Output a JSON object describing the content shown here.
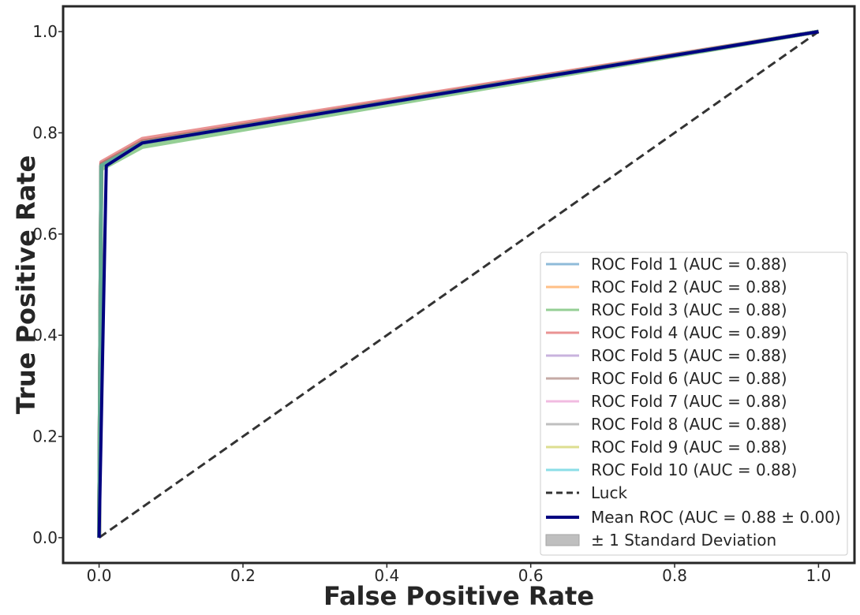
{
  "chart_data": {
    "type": "line",
    "title": "",
    "xlabel": "False Positive Rate",
    "ylabel": "True Positive Rate",
    "xlim": [
      -0.05,
      1.05
    ],
    "ylim": [
      -0.05,
      1.05
    ],
    "xticks": [
      "0.0",
      "0.2",
      "0.4",
      "0.6",
      "0.8",
      "1.0"
    ],
    "yticks": [
      "0.0",
      "0.2",
      "0.4",
      "0.6",
      "0.8",
      "1.0"
    ],
    "grid": false,
    "legend_position": "lower-right",
    "series": [
      {
        "name": "ROC Fold 1 (AUC = 0.88)",
        "color": "#1f77b4",
        "x": [
          0,
          0.003,
          0.06,
          1
        ],
        "y": [
          0,
          0.735,
          0.78,
          1
        ]
      },
      {
        "name": "ROC Fold 2 (AUC = 0.88)",
        "color": "#ff7f0e",
        "x": [
          0,
          0.003,
          0.06,
          1
        ],
        "y": [
          0,
          0.735,
          0.78,
          1
        ]
      },
      {
        "name": "ROC Fold 3 (AUC = 0.88)",
        "color": "#2ca02c",
        "x": [
          0,
          0.003,
          0.06,
          1
        ],
        "y": [
          0,
          0.728,
          0.772,
          1
        ]
      },
      {
        "name": "ROC Fold 4 (AUC = 0.89)",
        "color": "#d62728",
        "x": [
          0,
          0.003,
          0.06,
          1
        ],
        "y": [
          0,
          0.742,
          0.788,
          1
        ]
      },
      {
        "name": "ROC Fold 5 (AUC = 0.88)",
        "color": "#9467bd",
        "x": [
          0,
          0.003,
          0.06,
          1
        ],
        "y": [
          0,
          0.735,
          0.78,
          1
        ]
      },
      {
        "name": "ROC Fold 6 (AUC = 0.88)",
        "color": "#8c564b",
        "x": [
          0,
          0.003,
          0.06,
          1
        ],
        "y": [
          0,
          0.738,
          0.783,
          1
        ]
      },
      {
        "name": "ROC Fold 7 (AUC = 0.88)",
        "color": "#e377c2",
        "x": [
          0,
          0.003,
          0.06,
          1
        ],
        "y": [
          0,
          0.735,
          0.78,
          1
        ]
      },
      {
        "name": "ROC Fold 8 (AUC = 0.88)",
        "color": "#7f7f7f",
        "x": [
          0,
          0.003,
          0.06,
          1
        ],
        "y": [
          0,
          0.735,
          0.78,
          1
        ]
      },
      {
        "name": "ROC Fold 9 (AUC = 0.88)",
        "color": "#bcbd22",
        "x": [
          0,
          0.003,
          0.06,
          1
        ],
        "y": [
          0,
          0.735,
          0.78,
          1
        ]
      },
      {
        "name": "ROC Fold 10 (AUC = 0.88)",
        "color": "#17becf",
        "x": [
          0,
          0.003,
          0.06,
          1
        ],
        "y": [
          0,
          0.735,
          0.78,
          1
        ]
      }
    ],
    "luck": {
      "name": "Luck",
      "color": "#333333",
      "x": [
        0,
        1
      ],
      "y": [
        0,
        1
      ]
    },
    "mean_roc": {
      "name": "Mean ROC (AUC = 0.88 ± 0.00)",
      "color": "#000080",
      "x": [
        0,
        0.01,
        0.06,
        1
      ],
      "y": [
        0,
        0.735,
        0.78,
        1
      ]
    },
    "std_band": {
      "name": "± 1 Standard Deviation",
      "color": "#bfbfbf"
    }
  }
}
